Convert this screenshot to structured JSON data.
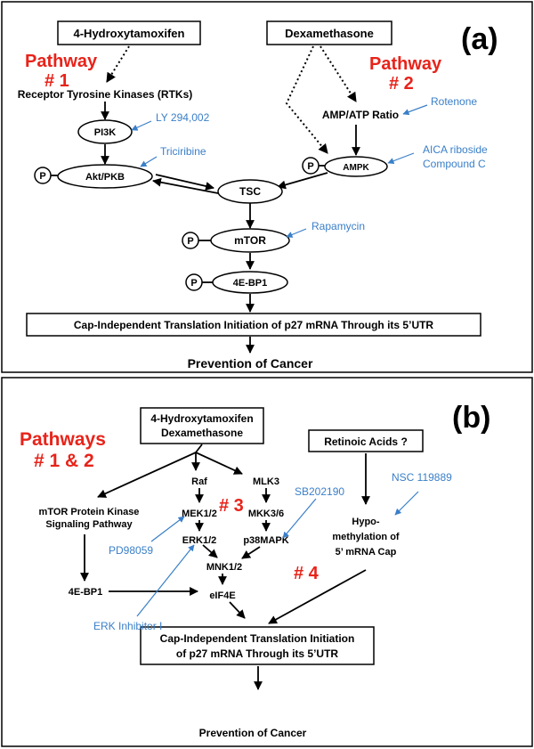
{
  "panel_a": {
    "label": "(a)",
    "drugs": {
      "tamoxifen": "4-Hydroxytamoxifen",
      "dexamethasone": "Dexamethasone"
    },
    "pathway1": {
      "line1": "Pathway",
      "line2": "# 1"
    },
    "pathway2": {
      "line1": "Pathway",
      "line2": "# 2"
    },
    "nodes": {
      "rtk": "Receptor Tyrosine Kinases (RTKs)",
      "pi3k": "PI3K",
      "akt": "Akt/PKB",
      "tsc": "TSC",
      "amp_atp": "AMP/ATP Ratio",
      "ampk": "AMPK",
      "mtor": "mTOR",
      "ebp1": "4E-BP1",
      "p": "P",
      "cap": "Cap-Independent Translation Initiation of p27 mRNA Through its 5’UTR",
      "outcome": "Prevention of Cancer"
    },
    "inhibitors": {
      "ly": "LY 294,002",
      "triciribine": "Triciribine",
      "rotenone": "Rotenone",
      "aica": "AICA riboside",
      "compound_c": "Compound C",
      "rapamycin": "Rapamycin"
    }
  },
  "panel_b": {
    "label": "(b)",
    "drugs": {
      "line1": "4-Hydroxytamoxifen",
      "line2": "Dexamethasone"
    },
    "pathways": {
      "line1": "Pathways",
      "line2": "# 1 & 2"
    },
    "pathway3": "# 3",
    "pathway4": "# 4",
    "nodes": {
      "retinoic": "Retinoic Acids ?",
      "mtor_line1": "mTOR Protein Kinase",
      "mtor_line2": "Signaling Pathway",
      "raf": "Raf",
      "mlk3": "MLK3",
      "mek": "MEK1/2",
      "mkk": "MKK3/6",
      "erk": "ERK1/2",
      "p38": "p38MAPK",
      "mnk": "MNK1/2",
      "ebp1": "4E-BP1",
      "eif4e": "eIF4E",
      "hypo1": "Hypo-",
      "hypo2": "methylation of",
      "hypo3": "5’ mRNA Cap",
      "cap_line1": "Cap-Independent Translation Initiation",
      "cap_line2": "of  p27 mRNA Through its 5’UTR",
      "outcome": "Prevention of Cancer"
    },
    "inhibitors": {
      "sb": "SB202190",
      "nsc": "NSC 119889",
      "pd": "PD98059",
      "erk_inh": "ERK Inhibitor I"
    }
  },
  "colors": {
    "pathway_red": "#e8231a",
    "inhibitor_blue": "#3a7fc8",
    "ink": "#000000"
  }
}
